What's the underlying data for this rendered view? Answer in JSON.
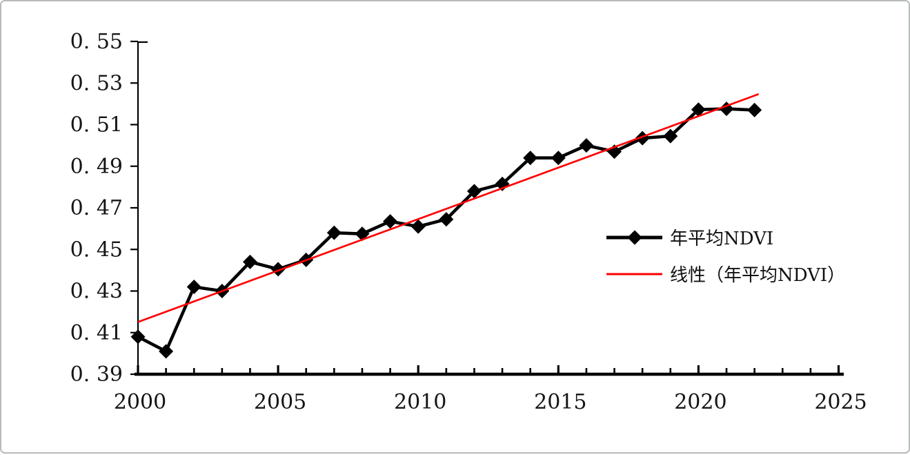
{
  "chart_data": {
    "type": "line",
    "title": "",
    "xlabel": "",
    "ylabel": "",
    "grid": false,
    "legend_position": "middle-right",
    "axis_color": "#000000",
    "xlim": [
      2000,
      2025.25
    ],
    "ylim": [
      0.39,
      0.55
    ],
    "x": [
      2000,
      2001,
      2002,
      2003,
      2004,
      2005,
      2006,
      2007,
      2008,
      2009,
      2010,
      2011,
      2012,
      2013,
      2014,
      2015,
      2016,
      2017,
      2018,
      2019,
      2020,
      2021,
      2022
    ],
    "series": [
      {
        "name": "年平均NDVI",
        "color": "#000000",
        "marker": "diamond",
        "values": [
          0.408,
          0.401,
          0.432,
          0.43,
          0.444,
          0.4405,
          0.445,
          0.458,
          0.4575,
          0.4635,
          0.461,
          0.4645,
          0.478,
          0.4815,
          0.494,
          0.494,
          0.5,
          0.497,
          0.5035,
          0.5045,
          0.5172,
          0.5176,
          0.517
        ]
      }
    ],
    "trendline": {
      "name": "线性（年平均NDVI）",
      "color": "#ff0000",
      "start": {
        "year": 2000,
        "value": 0.4151
      },
      "end": {
        "year": 2022.15,
        "value": 0.5247
      }
    },
    "x_ticks": [
      {
        "year": 2000,
        "label": "2000"
      },
      {
        "year": 2005,
        "label": "2005"
      },
      {
        "year": 2010,
        "label": "2010"
      },
      {
        "year": 2015,
        "label": "2015"
      },
      {
        "year": 2020,
        "label": "2020"
      },
      {
        "year": 2025,
        "label": "2025"
      }
    ],
    "x_minor_tick_step": 1,
    "y_ticks": [
      {
        "value": 0.39,
        "label": "0. 39"
      },
      {
        "value": 0.41,
        "label": "0. 41"
      },
      {
        "value": 0.43,
        "label": "0. 43"
      },
      {
        "value": 0.45,
        "label": "0. 45"
      },
      {
        "value": 0.47,
        "label": "0. 47"
      },
      {
        "value": 0.49,
        "label": "0. 49"
      },
      {
        "value": 0.51,
        "label": "0. 51"
      },
      {
        "value": 0.53,
        "label": "0. 53"
      },
      {
        "value": 0.55,
        "label": "0. 55"
      }
    ]
  }
}
